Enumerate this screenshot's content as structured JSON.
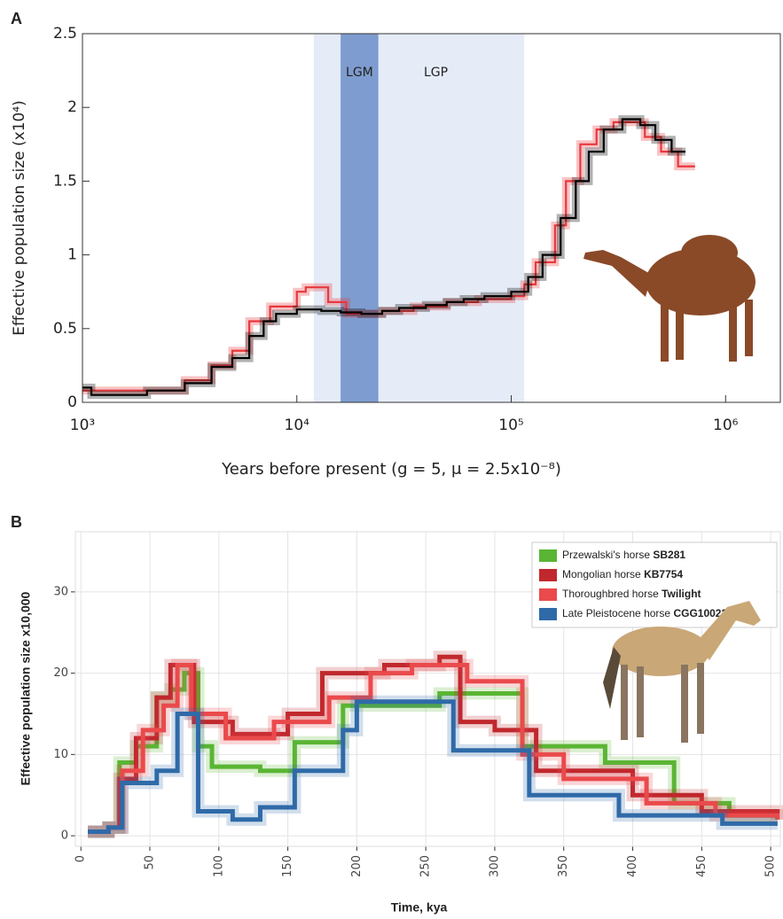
{
  "chart_data": [
    {
      "panel": "A",
      "type": "line",
      "step": true,
      "xscale": "log",
      "grid": false,
      "xlim": [
        1000,
        1800000
      ],
      "xticks": [
        {
          "value": 1000,
          "label": "10³"
        },
        {
          "value": 10000,
          "label": "10⁴"
        },
        {
          "value": 100000,
          "label": "10⁵"
        },
        {
          "value": 1000000,
          "label": "10⁶"
        }
      ],
      "ylim": [
        0,
        2.5
      ],
      "yticks": [
        0,
        0.5,
        1,
        1.5,
        2,
        2.5
      ],
      "ylabel": "Effective population size (x10⁴)",
      "xlabel": "Years before present (g = 5, μ = 2.5x10⁻⁸)",
      "shaded": [
        {
          "label": "LGP",
          "x": [
            12000,
            115000
          ],
          "color": "#e5ecf8"
        },
        {
          "label": "LGM",
          "x": [
            16000,
            24000
          ],
          "color": "#7e9ccf"
        }
      ],
      "series": [
        {
          "color": "#e8383d",
          "x": [
            1000,
            2000,
            3000,
            4000,
            5000,
            6000,
            7500,
            10000,
            11000,
            14000,
            17000,
            25000,
            35000,
            50000,
            70000,
            100000,
            115000,
            130000,
            160000,
            180000,
            210000,
            250000,
            300000,
            360000,
            420000,
            500000,
            600000,
            720000
          ],
          "values": [
            0.08,
            0.08,
            0.15,
            0.25,
            0.35,
            0.55,
            0.65,
            0.75,
            0.78,
            0.68,
            0.6,
            0.62,
            0.65,
            0.68,
            0.7,
            0.72,
            0.8,
            0.95,
            1.2,
            1.5,
            1.75,
            1.85,
            1.9,
            1.9,
            1.8,
            1.7,
            1.6,
            1.6
          ]
        },
        {
          "color": "#000000",
          "x": [
            1000,
            1100,
            2000,
            3000,
            4000,
            5000,
            6000,
            7000,
            8000,
            10000,
            13000,
            16000,
            20000,
            25000,
            30000,
            40000,
            50000,
            60000,
            75000,
            100000,
            120000,
            140000,
            170000,
            200000,
            230000,
            270000,
            330000,
            400000,
            470000,
            560000,
            650000
          ],
          "values": [
            0.1,
            0.05,
            0.08,
            0.13,
            0.24,
            0.3,
            0.45,
            0.55,
            0.6,
            0.63,
            0.62,
            0.61,
            0.6,
            0.62,
            0.64,
            0.66,
            0.68,
            0.7,
            0.72,
            0.75,
            0.85,
            1.0,
            1.25,
            1.5,
            1.7,
            1.85,
            1.92,
            1.88,
            1.78,
            1.7,
            1.7
          ]
        }
      ]
    },
    {
      "panel": "B",
      "type": "line",
      "step": true,
      "grid": true,
      "legend": "top-right",
      "xlim": [
        -4,
        507
      ],
      "xticks": [
        0,
        50,
        100,
        150,
        200,
        250,
        300,
        350,
        400,
        450,
        500
      ],
      "ylim": [
        -1.3,
        37.4
      ],
      "yticks": [
        0,
        10,
        20,
        30
      ],
      "ylabel": "Effective population size x10,000",
      "xlabel": "Time, kya",
      "series": [
        {
          "name": "Przewalski's horse",
          "sample": "SB281",
          "color": "#5ab534",
          "x": [
            5,
            20,
            28,
            40,
            55,
            65,
            75,
            85,
            95,
            130,
            155,
            190,
            260,
            320,
            380,
            430,
            470,
            505
          ],
          "values": [
            0.5,
            1,
            9,
            11,
            17,
            18,
            20,
            11,
            8.5,
            8,
            11.5,
            16,
            17.5,
            11,
            9,
            4,
            2.5,
            2.5
          ]
        },
        {
          "name": "Mongolian horse",
          "sample": "KB7754",
          "color": "#c0282d",
          "x": [
            5,
            20,
            28,
            40,
            55,
            65,
            82,
            110,
            150,
            175,
            220,
            260,
            275,
            300,
            330,
            400,
            450,
            505
          ],
          "values": [
            0.5,
            1,
            7,
            12,
            17,
            21,
            14,
            12.5,
            15,
            20,
            21,
            22,
            14,
            13,
            8,
            5,
            3,
            2
          ]
        },
        {
          "name": "Thoroughbred horse",
          "sample": "Twilight",
          "color": "#ea4a4c",
          "x": [
            5,
            20,
            30,
            45,
            60,
            70,
            80,
            105,
            140,
            180,
            210,
            240,
            280,
            320,
            350,
            410,
            460,
            505
          ],
          "values": [
            0.5,
            1,
            8,
            13,
            16,
            21,
            15,
            12,
            14,
            17,
            20,
            21,
            19,
            10,
            7,
            4,
            2.5,
            2
          ]
        },
        {
          "name": "Late Pleistocene horse",
          "sample": "CGG10022",
          "color": "#2f6aa8",
          "x": [
            5,
            20,
            30,
            55,
            70,
            85,
            110,
            130,
            155,
            190,
            200,
            270,
            325,
            390,
            465,
            505
          ],
          "values": [
            0.5,
            1,
            6.5,
            8,
            15,
            3,
            2,
            3.5,
            8,
            13,
            16.5,
            10.5,
            5,
            2.5,
            1.5,
            1.5
          ]
        }
      ]
    }
  ]
}
